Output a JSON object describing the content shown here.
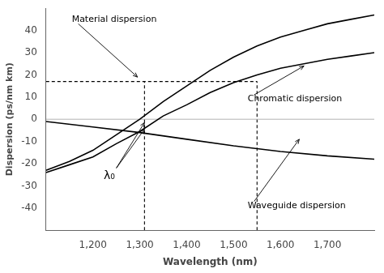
{
  "chart_data": {
    "type": "line",
    "xlabel": "Wavelength (nm)",
    "ylabel": "Dispersion (ps/nm km)",
    "xlim": [
      1100,
      1800
    ],
    "ylim": [
      -50,
      50
    ],
    "xticks": [
      1200,
      1300,
      1400,
      1500,
      1600,
      1700
    ],
    "yticks": [
      -40,
      -30,
      -20,
      -10,
      0,
      10,
      20,
      30,
      40
    ],
    "grid": false,
    "series": [
      {
        "color": "#000000",
        "x": [
          1100,
          1150,
          1200,
          1250,
          1300,
          1350,
          1400,
          1450,
          1500,
          1550,
          1600,
          1650,
          1700,
          1750,
          1800
        ],
        "values": [
          -23,
          -19,
          -14,
          -7,
          0,
          8,
          15,
          22,
          28,
          33,
          37,
          40,
          43,
          45,
          47
        ]
      },
      {
        "color": "#000000",
        "x": [
          1100,
          1200,
          1300,
          1400,
          1500,
          1600,
          1700,
          1800
        ],
        "values": [
          -1.0,
          -3.5,
          -6.0,
          -9.0,
          -12.0,
          -14.5,
          -16.5,
          -18.0
        ]
      },
      {
        "color": "#000000",
        "x": [
          1100,
          1150,
          1200,
          1250,
          1300,
          1350,
          1400,
          1450,
          1500,
          1550,
          1600,
          1650,
          1700,
          1750,
          1800
        ],
        "values": [
          -24.0,
          -20.5,
          -17.0,
          -11.0,
          -5.5,
          1.5,
          6.5,
          12.0,
          16.5,
          20.0,
          23.0,
          25.0,
          27.0,
          28.5,
          30.0
        ]
      }
    ],
    "reference_lines": [
      {
        "color": "#aaaaaa",
        "line_style": "solid",
        "x": [
          1100,
          1800
        ],
        "values": [
          0,
          0
        ]
      },
      {
        "color": "#000000",
        "line_style": "dashed",
        "x": [
          1310,
          1310
        ],
        "values": [
          -50,
          17.0
        ]
      },
      {
        "color": "#000000",
        "line_style": "dashed",
        "x": [
          1550,
          1550
        ],
        "values": [
          -50,
          17.0
        ]
      },
      {
        "color": "#000000",
        "line_style": "dashed",
        "x": [
          1100,
          1550
        ],
        "values": [
          17.0,
          17.0
        ]
      }
    ],
    "annotations": [
      {
        "text": "Material dispersion",
        "xytext": [
          1155,
          43
        ],
        "arrows_from": [
          1155,
          43
        ],
        "arrows_to": [
          [
            1295,
            19
          ]
        ]
      },
      {
        "text": "Chromatic dispersion",
        "xytext": [
          1530,
          11
        ],
        "arrows_from": [
          1530,
          11
        ],
        "arrows_to": [
          [
            1650,
            24
          ]
        ]
      },
      {
        "text": "Waveguide dispersion",
        "xytext": [
          1530,
          -37
        ],
        "arrows_from": [
          1530,
          -37
        ],
        "arrows_to": [
          [
            1640,
            -9
          ]
        ]
      },
      {
        "text": "λ₀",
        "xytext": [
          1235,
          -23
        ],
        "arrows_from": [
          1250,
          -22
        ],
        "arrows_to": [
          [
            1310,
            -1.5
          ],
          [
            1310,
            -4.5
          ]
        ]
      }
    ]
  }
}
